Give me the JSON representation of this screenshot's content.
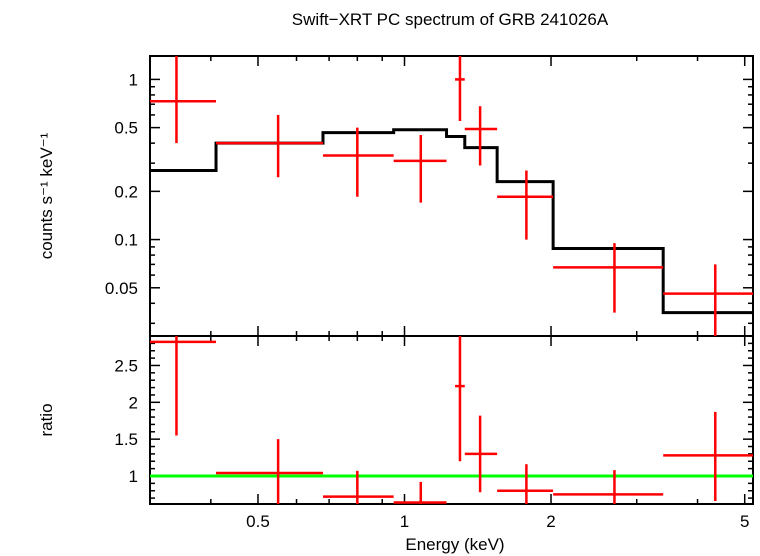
{
  "chart_data": [
    {
      "type": "scatter",
      "title": "Swift−XRT PC spectrum of GRB 241026A",
      "xlabel": "Energy (keV)",
      "ylabel": "counts s⁻¹ keV⁻¹",
      "x_scale": "log",
      "y_scale": "log",
      "xlim": [
        0.3,
        5.2
      ],
      "ylim": [
        0.025,
        1.4
      ],
      "y_ticks": [
        {
          "v": 0.05,
          "label": "0.05"
        },
        {
          "v": 0.1,
          "label": "0.1"
        },
        {
          "v": 0.2,
          "label": "0.2"
        },
        {
          "v": 0.5,
          "label": "0.5"
        },
        {
          "v": 1,
          "label": "1"
        }
      ],
      "colors": {
        "data": "#ff0000",
        "model": "#000000"
      },
      "data_points": [
        {
          "x": 0.34,
          "x_lo": 0.3,
          "x_hi": 0.41,
          "y": 0.73,
          "y_lo": 0.4,
          "y_hi": 1.4
        },
        {
          "x": 0.55,
          "x_lo": 0.41,
          "x_hi": 0.68,
          "y": 0.4,
          "y_lo": 0.245,
          "y_hi": 0.6
        },
        {
          "x": 0.8,
          "x_lo": 0.68,
          "x_hi": 0.95,
          "y": 0.335,
          "y_lo": 0.185,
          "y_hi": 0.5
        },
        {
          "x": 1.08,
          "x_lo": 0.95,
          "x_hi": 1.22,
          "y": 0.31,
          "y_lo": 0.17,
          "y_hi": 0.45
        },
        {
          "x": 1.3,
          "x_lo": 1.27,
          "x_hi": 1.33,
          "y": 1.0,
          "y_lo": 0.55,
          "y_hi": 1.4
        },
        {
          "x": 1.43,
          "x_lo": 1.33,
          "x_hi": 1.55,
          "y": 0.49,
          "y_lo": 0.29,
          "y_hi": 0.68
        },
        {
          "x": 1.78,
          "x_lo": 1.55,
          "x_hi": 2.02,
          "y": 0.185,
          "y_lo": 0.1,
          "y_hi": 0.27
        },
        {
          "x": 2.7,
          "x_lo": 2.02,
          "x_hi": 3.4,
          "y": 0.067,
          "y_lo": 0.035,
          "y_hi": 0.095
        },
        {
          "x": 4.35,
          "x_lo": 3.4,
          "x_hi": 5.2,
          "y": 0.046,
          "y_lo": 0.025,
          "y_hi": 0.07
        }
      ],
      "model_steps": [
        {
          "x_lo": 0.3,
          "x_hi": 0.41,
          "y": 0.27
        },
        {
          "x_lo": 0.41,
          "x_hi": 0.68,
          "y": 0.4
        },
        {
          "x_lo": 0.68,
          "x_hi": 0.95,
          "y": 0.465
        },
        {
          "x_lo": 0.95,
          "x_hi": 1.22,
          "y": 0.485
        },
        {
          "x_lo": 1.22,
          "x_hi": 1.33,
          "y": 0.44
        },
        {
          "x_lo": 1.33,
          "x_hi": 1.55,
          "y": 0.375
        },
        {
          "x_lo": 1.55,
          "x_hi": 2.02,
          "y": 0.23
        },
        {
          "x_lo": 2.02,
          "x_hi": 3.4,
          "y": 0.088
        },
        {
          "x_lo": 3.4,
          "x_hi": 5.2,
          "y": 0.035
        }
      ]
    },
    {
      "type": "scatter",
      "ylabel": "ratio",
      "xlabel": "Energy (keV)",
      "x_scale": "log",
      "y_scale": "linear",
      "xlim": [
        0.3,
        5.2
      ],
      "ylim": [
        0.62,
        2.9
      ],
      "x_ticks": [
        {
          "v": 0.5,
          "label": "0.5"
        },
        {
          "v": 1,
          "label": "1"
        },
        {
          "v": 2,
          "label": "2"
        },
        {
          "v": 5,
          "label": "5"
        }
      ],
      "y_ticks": [
        {
          "v": 1,
          "label": "1"
        },
        {
          "v": 1.5,
          "label": "1.5"
        },
        {
          "v": 2,
          "label": "2"
        },
        {
          "v": 2.5,
          "label": "2.5"
        }
      ],
      "reference_line": 1,
      "colors": {
        "data": "#ff0000",
        "reference": "#00ff00"
      },
      "data_points": [
        {
          "x": 0.34,
          "x_lo": 0.3,
          "x_hi": 0.41,
          "y": 2.82,
          "y_lo": 1.55,
          "y_hi": 2.9
        },
        {
          "x": 0.55,
          "x_lo": 0.41,
          "x_hi": 0.68,
          "y": 1.04,
          "y_lo": 0.62,
          "y_hi": 1.5
        },
        {
          "x": 0.8,
          "x_lo": 0.68,
          "x_hi": 0.95,
          "y": 0.72,
          "y_lo": 0.62,
          "y_hi": 1.07
        },
        {
          "x": 1.08,
          "x_lo": 0.95,
          "x_hi": 1.22,
          "y": 0.64,
          "y_lo": 0.62,
          "y_hi": 0.92
        },
        {
          "x": 1.3,
          "x_lo": 1.27,
          "x_hi": 1.33,
          "y": 2.22,
          "y_lo": 1.2,
          "y_hi": 2.9
        },
        {
          "x": 1.43,
          "x_lo": 1.33,
          "x_hi": 1.55,
          "y": 1.3,
          "y_lo": 0.78,
          "y_hi": 1.82
        },
        {
          "x": 1.78,
          "x_lo": 1.55,
          "x_hi": 2.02,
          "y": 0.8,
          "y_lo": 0.62,
          "y_hi": 1.16
        },
        {
          "x": 2.7,
          "x_lo": 2.02,
          "x_hi": 3.4,
          "y": 0.75,
          "y_lo": 0.62,
          "y_hi": 1.08
        },
        {
          "x": 4.35,
          "x_lo": 3.4,
          "x_hi": 5.2,
          "y": 1.28,
          "y_lo": 0.66,
          "y_hi": 1.87
        }
      ]
    }
  ]
}
